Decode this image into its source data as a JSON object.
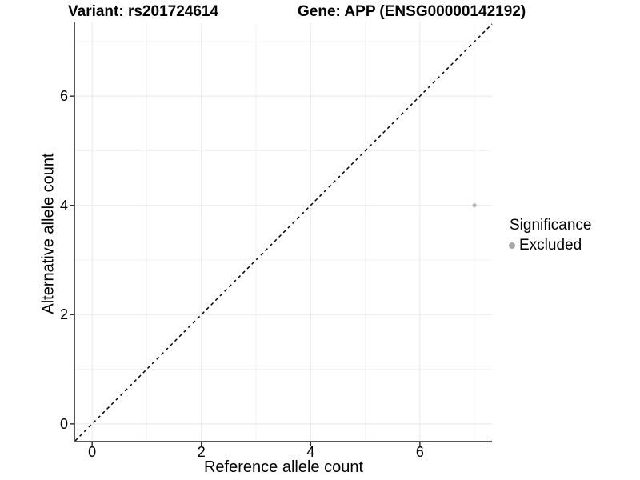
{
  "header": {
    "variant_title": "Variant: rs201724614",
    "gene_title": "Gene: APP (ENSG00000142192)"
  },
  "axes": {
    "x": {
      "label": "Reference allele count",
      "ticks": [
        "0",
        "2",
        "4",
        "6"
      ]
    },
    "y": {
      "label": "Alternative allele count",
      "ticks": [
        "0",
        "2",
        "4",
        "6"
      ]
    }
  },
  "legend": {
    "title": "Significance",
    "items": [
      {
        "label": "Excluded",
        "color": "#a6a6a6"
      }
    ]
  },
  "colors": {
    "background": "#ffffff",
    "text": "#000000",
    "grid_major": "#e8e8e8",
    "grid_minor": "#f3f3f3",
    "axis_line": "#595959",
    "tick_mark": "#333333",
    "dashed_line": "#000000",
    "point": "#b4b4b4"
  },
  "chart_data": {
    "type": "scatter",
    "title_left": "Variant: rs201724614",
    "title_right": "Gene: APP (ENSG00000142192)",
    "xlabel": "Reference allele count",
    "ylabel": "Alternative allele count",
    "xlim": [
      -0.31,
      7.32
    ],
    "ylim": [
      -0.31,
      7.35
    ],
    "x_ticks": [
      0,
      2,
      4,
      6
    ],
    "y_ticks": [
      0,
      2,
      4,
      6
    ],
    "x_minor_ticks": [
      1,
      3,
      5,
      7
    ],
    "y_minor_ticks": [
      1,
      3,
      5,
      7
    ],
    "grid": true,
    "legend_position": "right",
    "series": [
      {
        "name": "Excluded",
        "points": [
          {
            "x": 7,
            "y": 4
          }
        ]
      }
    ],
    "reference_line": {
      "equation": "y = x",
      "style": "dashed"
    }
  }
}
